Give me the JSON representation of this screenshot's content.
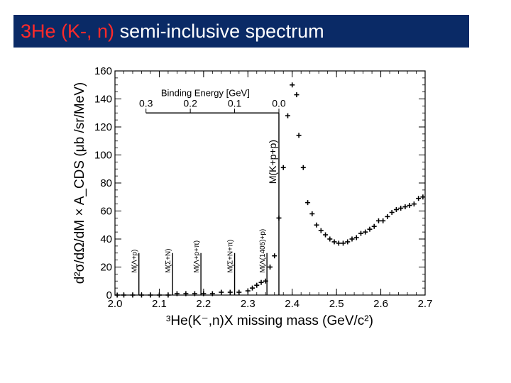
{
  "slide_title": {
    "highlight": "3He (K-,  n)",
    "rest": "semi-inclusive spectrum"
  },
  "colors": {
    "title_bg": "#0a2a66",
    "title_highlight": "#ff2a2a",
    "title_text": "#ffffff",
    "data": "#000000"
  },
  "chart_data": {
    "type": "scatter",
    "xlabel": "³He(K⁻,n)X missing mass (GeV/c²)",
    "ylabel": "d²σ/dΩ/dM × A_CDS (μb /sr/MeV)",
    "xlim": [
      2.0,
      2.7
    ],
    "ylim": [
      0,
      160
    ],
    "x_ticks": [
      "2.0",
      "2.1",
      "2.2",
      "2.3",
      "2.4",
      "2.5",
      "2.6",
      "2.7"
    ],
    "y_ticks": [
      "0",
      "20",
      "40",
      "60",
      "80",
      "100",
      "120",
      "140",
      "160"
    ],
    "grid": false,
    "secondary_axis": {
      "label": "Binding Energy [GeV]",
      "ticks": [
        "0.3",
        "0.2",
        "0.1",
        "0.0"
      ],
      "tick_mass": [
        2.07,
        2.17,
        2.27,
        2.37
      ]
    },
    "thresholds": [
      {
        "label": "M(Λ+p)",
        "x": 2.054,
        "height": 30
      },
      {
        "label": "M(Σ+N)",
        "x": 2.13,
        "height": 30
      },
      {
        "label": "M(Λ+p+π)",
        "x": 2.194,
        "height": 30
      },
      {
        "label": "M(Σ+N+π)",
        "x": 2.27,
        "height": 30
      },
      {
        "label": "M(Λ(1405)+p)",
        "x": 2.343,
        "height": 30
      },
      {
        "label": "M(K+p+p)",
        "x": 2.37,
        "height": 130
      }
    ],
    "series": [
      {
        "x": [
          2.005,
          2.02,
          2.04,
          2.06,
          2.08,
          2.1,
          2.12,
          2.14,
          2.16,
          2.18,
          2.2,
          2.22,
          2.24,
          2.26,
          2.28,
          2.3,
          2.31,
          2.32,
          2.33,
          2.34,
          2.35,
          2.36,
          2.37,
          2.38,
          2.39,
          2.4,
          2.41,
          2.415,
          2.425,
          2.435,
          2.445,
          2.455,
          2.465,
          2.475,
          2.485,
          2.495,
          2.505,
          2.515,
          2.525,
          2.535,
          2.545,
          2.555,
          2.565,
          2.575,
          2.585,
          2.595,
          2.605,
          2.615,
          2.625,
          2.635,
          2.645,
          2.655,
          2.665,
          2.675,
          2.685,
          2.695
        ],
        "y": [
          0,
          0,
          0,
          0,
          0,
          0,
          0,
          1,
          1,
          1,
          1,
          1,
          2,
          2,
          2,
          3,
          5,
          7,
          9,
          10,
          20,
          28,
          55,
          91,
          128,
          150,
          143,
          114,
          91,
          66,
          58,
          50,
          46,
          43,
          40,
          38,
          37,
          37,
          38,
          40,
          41,
          44,
          45,
          47,
          49,
          53,
          53,
          56,
          59,
          61,
          62,
          63,
          64,
          65,
          69,
          70
        ]
      }
    ]
  }
}
